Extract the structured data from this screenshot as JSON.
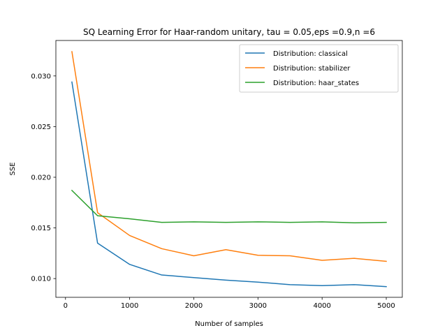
{
  "chart_data": {
    "type": "line",
    "title": "SQ Learning Error for Haar-random unitary, tau = 0.05,eps =0.9,n =6",
    "xlabel": "Number of samples",
    "ylabel": "SSE",
    "xlim": [
      -150,
      5250
    ],
    "ylim": [
      0.00815,
      0.0335
    ],
    "x_ticks": [
      0,
      1000,
      2000,
      3000,
      4000,
      5000
    ],
    "x_tick_labels": [
      "0",
      "1000",
      "2000",
      "3000",
      "4000",
      "5000"
    ],
    "y_ticks": [
      0.01,
      0.015,
      0.02,
      0.025,
      0.03
    ],
    "y_tick_labels": [
      "0.010",
      "0.015",
      "0.020",
      "0.025",
      "0.030"
    ],
    "grid": false,
    "legend_position": "top-right",
    "x": [
      100,
      500,
      1000,
      1500,
      2000,
      2500,
      3000,
      3500,
      4000,
      4500,
      5000
    ],
    "series": [
      {
        "name": "Distribution: classical",
        "color": "#1f77b4",
        "values": [
          0.0294,
          0.0135,
          0.0114,
          0.01035,
          0.0101,
          0.00985,
          0.00965,
          0.0094,
          0.0093,
          0.0094,
          0.0092
        ]
      },
      {
        "name": "Distribution: stabilizer",
        "color": "#ff7f0e",
        "values": [
          0.0324,
          0.0165,
          0.01425,
          0.01295,
          0.01225,
          0.01285,
          0.0123,
          0.01225,
          0.0118,
          0.012,
          0.0117
        ]
      },
      {
        "name": "Distribution: haar_states",
        "color": "#2ca02c",
        "values": [
          0.0187,
          0.0162,
          0.0159,
          0.01555,
          0.0156,
          0.01555,
          0.0156,
          0.01555,
          0.0156,
          0.0155,
          0.01555
        ]
      }
    ]
  }
}
